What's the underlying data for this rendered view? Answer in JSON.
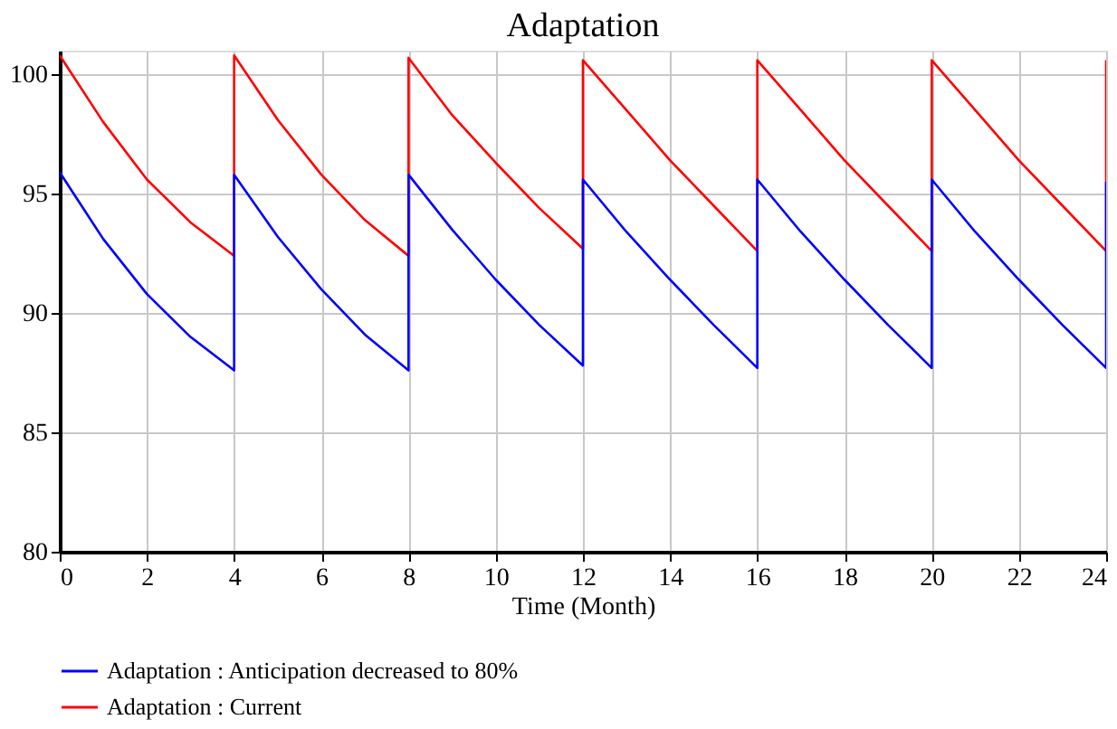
{
  "chart_data": {
    "type": "line",
    "title": "Adaptation",
    "xlabel": "Time (Month)",
    "x": [
      0,
      1,
      2,
      3,
      4,
      4,
      5,
      6,
      7,
      8,
      8,
      9,
      10,
      11,
      12,
      12,
      13,
      14,
      15,
      16,
      16,
      17,
      18,
      19,
      20,
      20,
      21,
      22,
      23,
      24,
      24
    ],
    "series": [
      {
        "name": "Adaptation : Anticipation decreased to 80%",
        "color": "#0000ff",
        "values": [
          95.9,
          93.1,
          90.8,
          89.0,
          87.6,
          95.8,
          93.2,
          91.0,
          89.1,
          87.6,
          95.8,
          93.5,
          91.4,
          89.5,
          87.8,
          95.6,
          93.4,
          91.4,
          89.5,
          87.7,
          95.6,
          93.4,
          91.4,
          89.5,
          87.7,
          95.6,
          93.4,
          91.4,
          89.5,
          87.7,
          95.5
        ]
      },
      {
        "name": "Adaptation : Current",
        "color": "#ff0000",
        "values": [
          100.8,
          98.0,
          95.6,
          93.8,
          92.4,
          100.8,
          98.1,
          95.8,
          93.9,
          92.4,
          100.7,
          98.3,
          96.3,
          94.4,
          92.7,
          100.6,
          98.5,
          96.4,
          94.5,
          92.6,
          100.6,
          98.5,
          96.4,
          94.5,
          92.6,
          100.6,
          98.5,
          96.4,
          94.5,
          92.6,
          100.6
        ]
      }
    ],
    "xlim": [
      0,
      24
    ],
    "xticks": [
      0,
      2,
      4,
      6,
      8,
      10,
      12,
      14,
      16,
      18,
      20,
      22,
      24
    ],
    "ylim": [
      80,
      101
    ],
    "yticks": [
      80,
      85,
      90,
      95,
      100
    ],
    "grid": true,
    "legend": "bottom",
    "line_style": "solid",
    "marker": "none"
  }
}
